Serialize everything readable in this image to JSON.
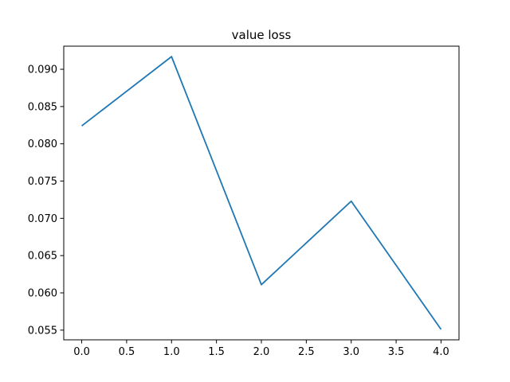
{
  "chart_data": {
    "type": "line",
    "title": "value loss",
    "xlabel": "",
    "ylabel": "",
    "x": [
      0,
      1,
      2,
      3,
      4
    ],
    "series": [
      {
        "values": [
          0.0824,
          0.0917,
          0.0611,
          0.0723,
          0.0551
        ],
        "color": "#1f77b4"
      }
    ],
    "xlim": [
      -0.2,
      4.2
    ],
    "ylim": [
      0.0537,
      0.0931
    ],
    "x_ticks": [
      0.0,
      0.5,
      1.0,
      1.5,
      2.0,
      2.5,
      3.0,
      3.5,
      4.0
    ],
    "x_tick_labels": [
      "0.0",
      "0.5",
      "1.0",
      "1.5",
      "2.0",
      "2.5",
      "3.0",
      "3.5",
      "4.0"
    ],
    "y_ticks": [
      0.055,
      0.06,
      0.065,
      0.07,
      0.075,
      0.08,
      0.085,
      0.09
    ],
    "y_tick_labels": [
      "0.055",
      "0.060",
      "0.065",
      "0.070",
      "0.075",
      "0.080",
      "0.085",
      "0.090"
    ],
    "grid": false,
    "legend": "none"
  }
}
